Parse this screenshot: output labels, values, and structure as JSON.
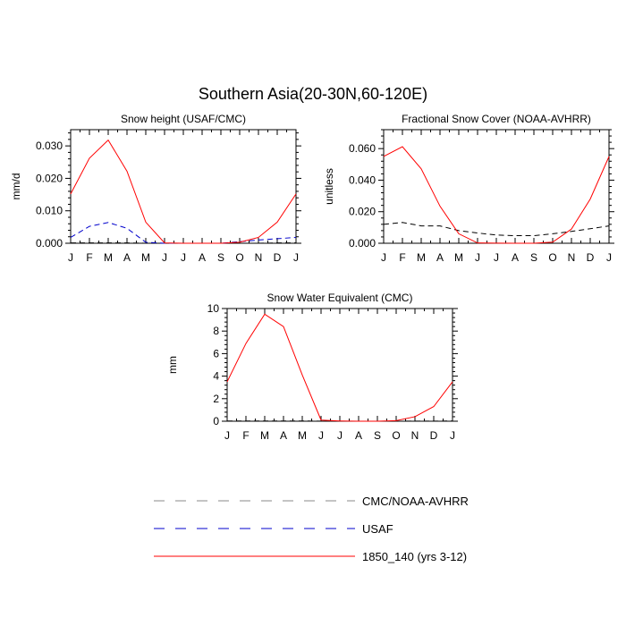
{
  "figure_title": "Southern Asia(20-30N,60-120E)",
  "months": [
    "J",
    "F",
    "M",
    "A",
    "M",
    "J",
    "J",
    "A",
    "S",
    "O",
    "N",
    "D",
    "J"
  ],
  "colors": {
    "cmc_noaa": "#000000",
    "usaf": "#0000cc",
    "model": "#ff0000",
    "legend_black": "#888888"
  },
  "legend": [
    {
      "label": "CMC/NOAA-AVHRR",
      "style": "dashed",
      "color": "#888888"
    },
    {
      "label": "USAF",
      "style": "dashed",
      "color": "#0000cc"
    },
    {
      "label": "1850_140 (yrs 3-12)",
      "style": "solid",
      "color": "#ff0000"
    }
  ],
  "chart_data": [
    {
      "type": "line",
      "title": "Snow height (USAF/CMC)",
      "ylabel": "mm/d",
      "ylim": [
        0,
        0.035
      ],
      "yticks": [
        0.0,
        0.01,
        0.02,
        0.03
      ],
      "ytick_labels": [
        "0.000",
        "0.010",
        "0.020",
        "0.030"
      ],
      "x": [
        "J",
        "F",
        "M",
        "A",
        "M",
        "J",
        "J",
        "A",
        "S",
        "O",
        "N",
        "D",
        "J"
      ],
      "series": [
        {
          "name": "1850_140 (yrs 3-12)",
          "color": "#ff0000",
          "style": "solid",
          "values": [
            0.0152,
            0.0262,
            0.0318,
            0.0222,
            0.0065,
            0.0001,
            0.0,
            0.0,
            0.0,
            0.0003,
            0.0018,
            0.0065,
            0.0152
          ]
        },
        {
          "name": "USAF",
          "color": "#0000cc",
          "style": "dashed",
          "values": [
            0.0018,
            0.0052,
            0.0064,
            0.0046,
            0.0003,
            0.0,
            0.0,
            0.0,
            0.0,
            0.0005,
            0.001,
            0.0014,
            0.0018
          ]
        },
        {
          "name": "CMC/NOAA-AVHRR",
          "color": "#000000",
          "style": "dashed",
          "values": [
            0.0001,
            0.0001,
            0.0001,
            0.0001,
            0.0,
            0.0,
            0.0,
            0.0,
            0.0,
            0.0,
            0.0,
            0.0001,
            0.0001
          ]
        }
      ]
    },
    {
      "type": "line",
      "title": "Fractional Snow Cover (NOAA-AVHRR)",
      "ylabel": "unitless",
      "ylim": [
        0,
        0.072
      ],
      "yticks": [
        0.0,
        0.02,
        0.04,
        0.06
      ],
      "ytick_labels": [
        "0.000",
        "0.020",
        "0.040",
        "0.060"
      ],
      "x": [
        "J",
        "F",
        "M",
        "A",
        "M",
        "J",
        "J",
        "A",
        "S",
        "O",
        "N",
        "D",
        "J"
      ],
      "series": [
        {
          "name": "1850_140 (yrs 3-12)",
          "color": "#ff0000",
          "style": "solid",
          "values": [
            0.055,
            0.0612,
            0.0472,
            0.0235,
            0.006,
            0.0002,
            0.0001,
            0.0,
            0.0,
            0.0007,
            0.009,
            0.028,
            0.055
          ]
        },
        {
          "name": "CMC/NOAA-AVHRR",
          "color": "#000000",
          "style": "dashed",
          "values": [
            0.012,
            0.0132,
            0.011,
            0.011,
            0.008,
            0.0065,
            0.0052,
            0.0048,
            0.0048,
            0.006,
            0.0075,
            0.0092,
            0.011
          ]
        }
      ]
    },
    {
      "type": "line",
      "title": "Snow Water Equivalent (CMC)",
      "ylabel": "mm",
      "ylim": [
        0,
        10
      ],
      "yticks": [
        0,
        2,
        4,
        6,
        8,
        10
      ],
      "ytick_labels": [
        "0",
        "2",
        "4",
        "6",
        "8",
        "10"
      ],
      "x": [
        "J",
        "F",
        "M",
        "A",
        "M",
        "J",
        "J",
        "A",
        "S",
        "O",
        "N",
        "D",
        "J"
      ],
      "series": [
        {
          "name": "1850_140 (yrs 3-12)",
          "color": "#ff0000",
          "style": "solid",
          "values": [
            3.5,
            6.9,
            9.5,
            8.4,
            4.1,
            0.1,
            0.02,
            0.0,
            0.0,
            0.05,
            0.4,
            1.3,
            3.5
          ]
        },
        {
          "name": "CMC/NOAA-AVHRR",
          "color": "#000000",
          "style": "dashed",
          "values": [
            0.02,
            0.02,
            0.02,
            0.02,
            0.02,
            0.01,
            0.0,
            0.0,
            0.0,
            0.0,
            0.01,
            0.01,
            0.02
          ]
        }
      ]
    }
  ]
}
